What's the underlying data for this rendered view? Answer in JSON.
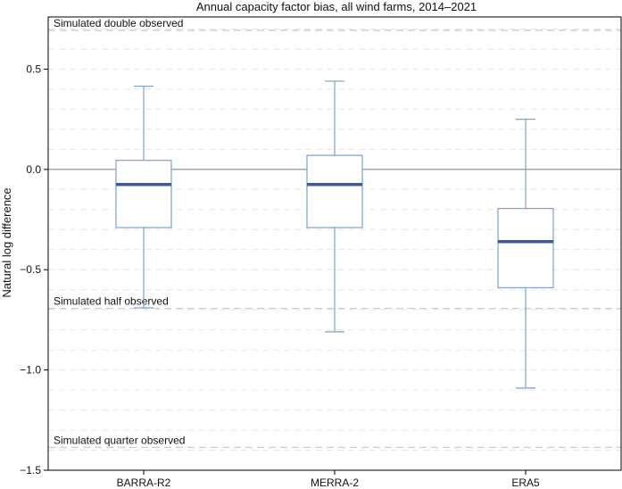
{
  "chart_data": {
    "type": "boxplot",
    "title": "Annual capacity factor bias, all wind farms, 2014–2021",
    "xlabel": "",
    "ylabel": "Natural log difference",
    "ylim": [
      -1.5,
      0.76
    ],
    "yticks": [
      0.5,
      0.0,
      -0.5,
      -1.0,
      -1.5
    ],
    "ytick_labels": [
      "0.5",
      "0.0",
      "−0.5",
      "−1.0",
      "−1.5"
    ],
    "grid": "horizontal dashed",
    "categories": [
      "BARRA-R2",
      "MERRA-2",
      "ERA5"
    ],
    "boxes": [
      {
        "name": "BARRA-R2",
        "whisker_low": -0.69,
        "q1": -0.29,
        "median": -0.075,
        "q3": 0.045,
        "whisker_high": 0.415
      },
      {
        "name": "MERRA-2",
        "whisker_low": -0.81,
        "q1": -0.29,
        "median": -0.075,
        "q3": 0.07,
        "whisker_high": 0.44
      },
      {
        "name": "ERA5",
        "whisker_low": -1.09,
        "q1": -0.59,
        "median": -0.36,
        "q3": -0.195,
        "whisker_high": 0.25
      }
    ],
    "reference_lines": [
      {
        "value": 0.693,
        "label": "Simulated double observed"
      },
      {
        "value": -0.693,
        "label": "Simulated half observed"
      },
      {
        "value": -1.386,
        "label": "Simulated quarter observed"
      }
    ],
    "zero_line": 0.0,
    "colors": {
      "box": "#7b9fd0",
      "median": "#3a57a8",
      "zero_line": "#8a8a8a",
      "ref_line": "#cccccc",
      "grid": "#e6e6e6"
    }
  }
}
